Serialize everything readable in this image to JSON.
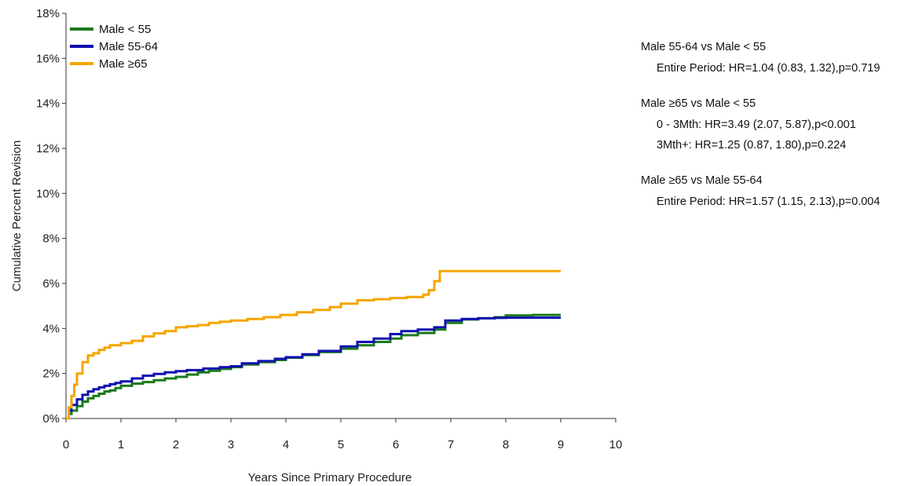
{
  "chart_data": {
    "type": "line",
    "title": "",
    "xlabel": "Years Since Primary Procedure",
    "ylabel": "Cumulative Percent Revision",
    "xlim": [
      0,
      10
    ],
    "ylim": [
      0,
      18
    ],
    "x_ticks": [
      "0",
      "1",
      "2",
      "3",
      "4",
      "5",
      "6",
      "7",
      "8",
      "9",
      "10"
    ],
    "y_ticks": [
      "0%",
      "2%",
      "4%",
      "6%",
      "8%",
      "10%",
      "12%",
      "14%",
      "16%",
      "18%"
    ],
    "legend_position": "top-left",
    "grid": false,
    "series": [
      {
        "name": "Male < 55",
        "color": "#1a7a1a",
        "points": [
          [
            0,
            0
          ],
          [
            0.05,
            0.2
          ],
          [
            0.1,
            0.35
          ],
          [
            0.2,
            0.55
          ],
          [
            0.3,
            0.75
          ],
          [
            0.4,
            0.9
          ],
          [
            0.5,
            1.0
          ],
          [
            0.6,
            1.1
          ],
          [
            0.7,
            1.2
          ],
          [
            0.8,
            1.25
          ],
          [
            0.9,
            1.35
          ],
          [
            1,
            1.45
          ],
          [
            1.2,
            1.55
          ],
          [
            1.4,
            1.62
          ],
          [
            1.6,
            1.7
          ],
          [
            1.8,
            1.78
          ],
          [
            2,
            1.85
          ],
          [
            2.2,
            1.95
          ],
          [
            2.4,
            2.05
          ],
          [
            2.6,
            2.12
          ],
          [
            2.8,
            2.2
          ],
          [
            3,
            2.28
          ],
          [
            3.2,
            2.4
          ],
          [
            3.5,
            2.5
          ],
          [
            3.8,
            2.6
          ],
          [
            4,
            2.7
          ],
          [
            4.3,
            2.82
          ],
          [
            4.6,
            2.95
          ],
          [
            5,
            3.1
          ],
          [
            5.3,
            3.25
          ],
          [
            5.6,
            3.4
          ],
          [
            5.9,
            3.55
          ],
          [
            6.1,
            3.7
          ],
          [
            6.4,
            3.8
          ],
          [
            6.7,
            3.95
          ],
          [
            6.9,
            4.25
          ],
          [
            7.2,
            4.4
          ],
          [
            7.5,
            4.45
          ],
          [
            7.8,
            4.5
          ],
          [
            8,
            4.58
          ],
          [
            8.5,
            4.6
          ],
          [
            9,
            4.6
          ]
        ]
      },
      {
        "name": "Male 55-64",
        "color": "#1010b0",
        "points": [
          [
            0,
            0
          ],
          [
            0.05,
            0.35
          ],
          [
            0.1,
            0.6
          ],
          [
            0.2,
            0.85
          ],
          [
            0.3,
            1.05
          ],
          [
            0.4,
            1.2
          ],
          [
            0.5,
            1.3
          ],
          [
            0.6,
            1.38
          ],
          [
            0.7,
            1.45
          ],
          [
            0.8,
            1.52
          ],
          [
            0.9,
            1.58
          ],
          [
            1,
            1.65
          ],
          [
            1.2,
            1.78
          ],
          [
            1.4,
            1.9
          ],
          [
            1.6,
            1.98
          ],
          [
            1.8,
            2.05
          ],
          [
            2,
            2.1
          ],
          [
            2.2,
            2.15
          ],
          [
            2.5,
            2.22
          ],
          [
            2.8,
            2.28
          ],
          [
            3,
            2.32
          ],
          [
            3.2,
            2.45
          ],
          [
            3.5,
            2.55
          ],
          [
            3.8,
            2.65
          ],
          [
            4,
            2.72
          ],
          [
            4.3,
            2.85
          ],
          [
            4.6,
            3.0
          ],
          [
            5,
            3.2
          ],
          [
            5.3,
            3.4
          ],
          [
            5.6,
            3.55
          ],
          [
            5.9,
            3.75
          ],
          [
            6.1,
            3.88
          ],
          [
            6.4,
            3.95
          ],
          [
            6.7,
            4.05
          ],
          [
            6.9,
            4.35
          ],
          [
            7.2,
            4.42
          ],
          [
            7.5,
            4.45
          ],
          [
            7.8,
            4.47
          ],
          [
            8,
            4.48
          ],
          [
            8.5,
            4.48
          ],
          [
            9,
            4.48
          ]
        ]
      },
      {
        "name": "Male ≥65",
        "color": "#f5a500",
        "points": [
          [
            0,
            0
          ],
          [
            0.05,
            0.5
          ],
          [
            0.1,
            1.0
          ],
          [
            0.15,
            1.5
          ],
          [
            0.2,
            2.0
          ],
          [
            0.3,
            2.5
          ],
          [
            0.4,
            2.8
          ],
          [
            0.5,
            2.9
          ],
          [
            0.6,
            3.05
          ],
          [
            0.7,
            3.15
          ],
          [
            0.8,
            3.25
          ],
          [
            1,
            3.35
          ],
          [
            1.2,
            3.45
          ],
          [
            1.4,
            3.65
          ],
          [
            1.6,
            3.78
          ],
          [
            1.8,
            3.88
          ],
          [
            2,
            4.05
          ],
          [
            2.2,
            4.1
          ],
          [
            2.4,
            4.15
          ],
          [
            2.6,
            4.25
          ],
          [
            2.8,
            4.3
          ],
          [
            3,
            4.35
          ],
          [
            3.3,
            4.42
          ],
          [
            3.6,
            4.5
          ],
          [
            3.9,
            4.6
          ],
          [
            4.2,
            4.72
          ],
          [
            4.5,
            4.82
          ],
          [
            4.8,
            4.95
          ],
          [
            5,
            5.1
          ],
          [
            5.3,
            5.25
          ],
          [
            5.6,
            5.3
          ],
          [
            5.9,
            5.35
          ],
          [
            6.2,
            5.4
          ],
          [
            6.5,
            5.5
          ],
          [
            6.6,
            5.7
          ],
          [
            6.7,
            6.1
          ],
          [
            6.8,
            6.55
          ],
          [
            7,
            6.55
          ],
          [
            8,
            6.55
          ],
          [
            9,
            6.55
          ]
        ]
      }
    ],
    "annotations": [
      {
        "heading": "Male 55-64 vs Male < 55",
        "lines": [
          "Entire Period: HR=1.04 (0.83, 1.32),p=0.719"
        ]
      },
      {
        "heading": "Male ≥65 vs Male < 55",
        "lines": [
          "0 - 3Mth: HR=3.49 (2.07, 5.87),p<0.001",
          "3Mth+: HR=1.25 (0.87, 1.80),p=0.224"
        ]
      },
      {
        "heading": "Male ≥65 vs Male 55-64",
        "lines": [
          "Entire Period: HR=1.57 (1.15, 2.13),p=0.004"
        ]
      }
    ]
  }
}
